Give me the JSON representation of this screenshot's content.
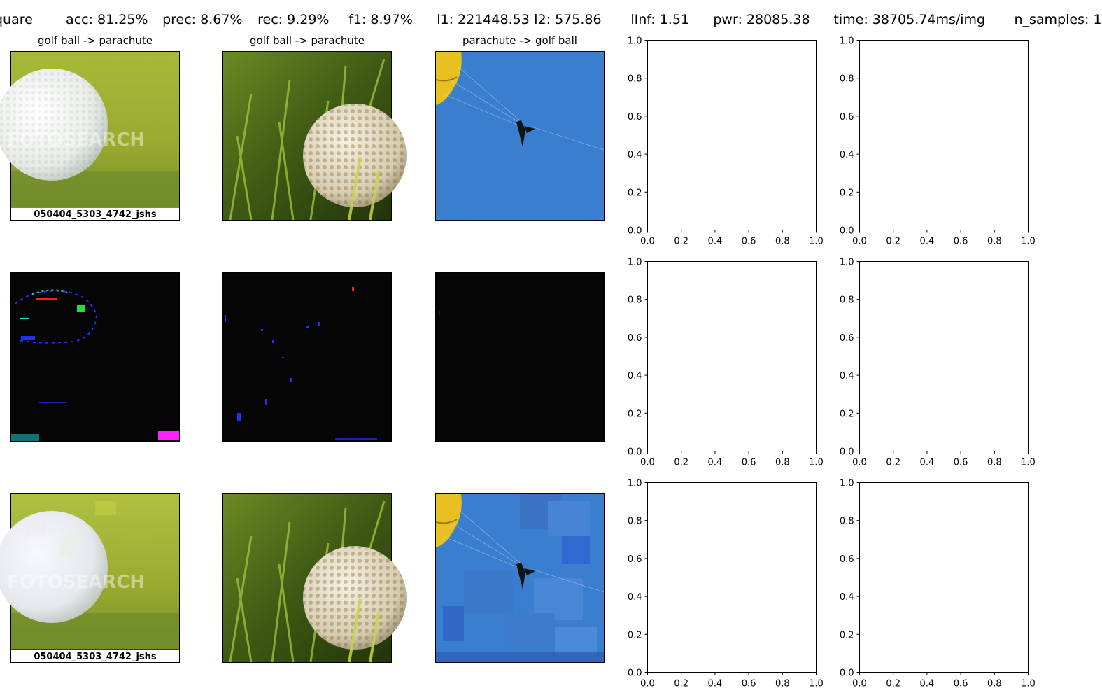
{
  "suptitle": {
    "parts": [
      "quare",
      "acc: 81.25%",
      "prec: 8.67%",
      "rec: 9.29%",
      "f1: 8.97%",
      "l1: 221448.53",
      "l2: 575.86",
      "lInf: 1.51",
      "pwr: 28085.38",
      "time: 38705.74ms/img",
      "n_samples: 1"
    ]
  },
  "columns": [
    {
      "title": "golf ball -> parachute",
      "subject": "golf-ball-on-grass",
      "caption": "050404_5303_4742_jshs",
      "watermark": "FOTOSEARCH"
    },
    {
      "title": "golf ball -> parachute",
      "subject": "golf-ball-in-tall-grass"
    },
    {
      "title": "parachute -> golf ball",
      "subject": "parasailer-on-blue-sky"
    }
  ],
  "chart_data": [
    {
      "type": "scatter",
      "xlim": [
        0.0,
        1.0
      ],
      "ylim": [
        0.0,
        1.0
      ],
      "xticks": [
        "0.0",
        "0.2",
        "0.4",
        "0.6",
        "0.8",
        "1.0"
      ],
      "yticks": [
        "0.0",
        "0.2",
        "0.4",
        "0.6",
        "0.8",
        "1.0"
      ],
      "series": []
    },
    {
      "type": "scatter",
      "xlim": [
        0.0,
        1.0
      ],
      "ylim": [
        0.0,
        1.0
      ],
      "xticks": [
        "0.0",
        "0.2",
        "0.4",
        "0.6",
        "0.8",
        "1.0"
      ],
      "yticks": [
        "0.0",
        "0.2",
        "0.4",
        "0.6",
        "0.8",
        "1.0"
      ],
      "series": []
    },
    {
      "type": "scatter",
      "xlim": [
        0.0,
        1.0
      ],
      "ylim": [
        0.0,
        1.0
      ],
      "xticks": [
        "0.0",
        "0.2",
        "0.4",
        "0.6",
        "0.8",
        "1.0"
      ],
      "yticks": [
        "0.0",
        "0.2",
        "0.4",
        "0.6",
        "0.8",
        "1.0"
      ],
      "series": []
    },
    {
      "type": "scatter",
      "xlim": [
        0.0,
        1.0
      ],
      "ylim": [
        0.0,
        1.0
      ],
      "xticks": [
        "0.0",
        "0.2",
        "0.4",
        "0.6",
        "0.8",
        "1.0"
      ],
      "yticks": [
        "0.0",
        "0.2",
        "0.4",
        "0.6",
        "0.8",
        "1.0"
      ],
      "series": []
    },
    {
      "type": "scatter",
      "xlim": [
        0.0,
        1.0
      ],
      "ylim": [
        0.0,
        1.0
      ],
      "xticks": [
        "0.0",
        "0.2",
        "0.4",
        "0.6",
        "0.8",
        "1.0"
      ],
      "yticks": [
        "0.0",
        "0.2",
        "0.4",
        "0.6",
        "0.8",
        "1.0"
      ],
      "series": []
    },
    {
      "type": "scatter",
      "xlim": [
        0.0,
        1.0
      ],
      "ylim": [
        0.0,
        1.0
      ],
      "xticks": [
        "0.0",
        "0.2",
        "0.4",
        "0.6",
        "0.8",
        "1.0"
      ],
      "yticks": [
        "0.0",
        "0.2",
        "0.4",
        "0.6",
        "0.8",
        "1.0"
      ],
      "series": []
    }
  ]
}
